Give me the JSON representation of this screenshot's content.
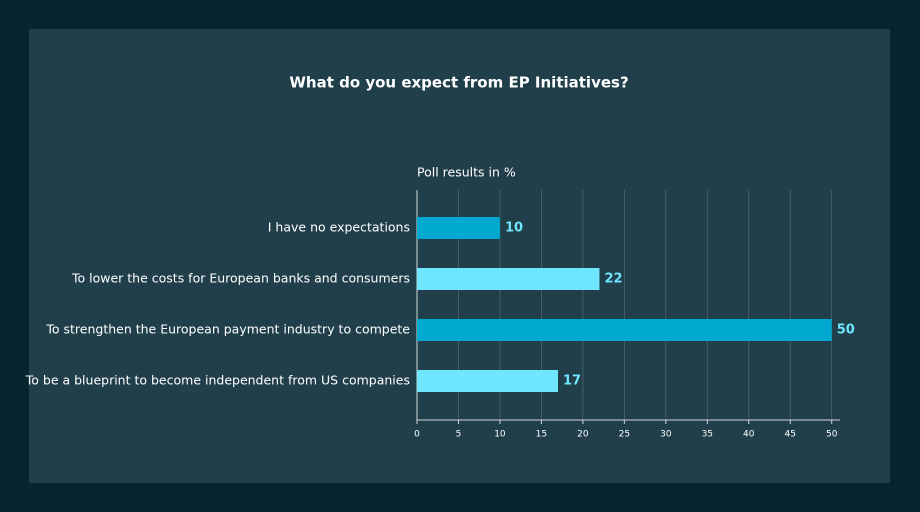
{
  "chart_data": {
    "type": "hbar",
    "title": "What do you expect from EP Initiatives?",
    "subtitle": "Poll results in %",
    "categories": [
      "I have no expectations",
      "To lower the costs for European banks and consumers",
      "To strengthen the European payment industry to compete",
      "To be a blueprint to become independent from US companies"
    ],
    "values": [
      10,
      22,
      50,
      17
    ],
    "colors": [
      "#00a9cf",
      "#6fe6ff",
      "#00a9cf",
      "#6fe6ff"
    ],
    "xlim": [
      0,
      51
    ],
    "xticks": [
      0,
      5,
      10,
      15,
      20,
      25,
      30,
      35,
      40,
      45,
      50
    ],
    "grid": true
  }
}
